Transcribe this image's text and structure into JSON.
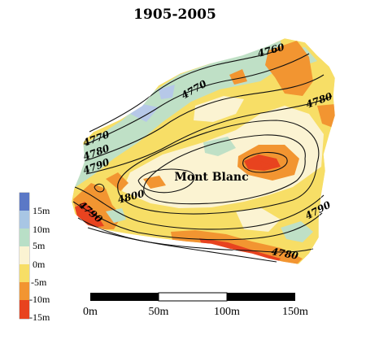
{
  "title": "1905-2005",
  "summit_label": "Mont Blanc",
  "contour_labels": [
    "4760",
    "4770",
    "4780",
    "4770",
    "4780",
    "4790",
    "4800",
    "4790",
    "4790",
    "4780"
  ],
  "legend": {
    "items": [
      {
        "label": "15m",
        "color": "#5b78c6"
      },
      {
        "label": "10m",
        "color": "#a8c6e4"
      },
      {
        "label": "5m",
        "color": "#b9dfc7"
      },
      {
        "label": "0m",
        "color": "#fbf3d2"
      },
      {
        "label": "-5m",
        "color": "#f7de66"
      },
      {
        "label": "-10m",
        "color": "#f29531"
      },
      {
        "label": "-15m",
        "color": "#e8431f"
      }
    ]
  },
  "scalebar": {
    "labels": [
      "0m",
      "50m",
      "100m",
      "150m"
    ]
  },
  "colors": {
    "blue": "#b6c8e8",
    "green": "#bfe0c6",
    "cream": "#fbf3d2",
    "yellow": "#f7de66",
    "orange": "#f29531",
    "red": "#e8431f"
  }
}
